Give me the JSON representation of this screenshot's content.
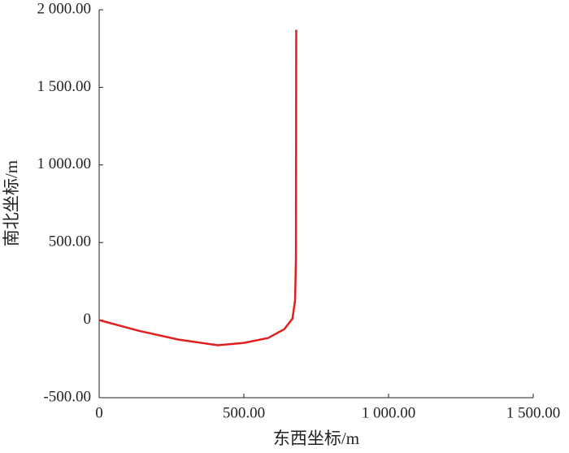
{
  "chart_data": {
    "type": "line",
    "x_label": "东西坐标/m",
    "y_label": "南北坐标/m",
    "xlim": [
      0,
      1500
    ],
    "xticks": [
      0,
      {
        "value": 500,
        "label": "500.00"
      },
      {
        "value": 1000,
        "label": "1 000.00"
      },
      {
        "value": 1500,
        "label": "1 500.00"
      }
    ],
    "ylim": [
      -500,
      2000
    ],
    "yticks": [
      {
        "value": -500,
        "label": "-500.00"
      },
      0,
      {
        "value": 500,
        "label": "500.00"
      },
      {
        "value": 1000,
        "label": "1 000.00"
      },
      {
        "value": 1500,
        "label": "1 500.00"
      },
      {
        "value": 2000,
        "label": "2 000.00"
      }
    ],
    "grid": false,
    "series": [
      {
        "color": "#e02020",
        "x": [
          0,
          135,
          275,
          410,
          500,
          584,
          640,
          668,
          677,
          680,
          681
        ],
        "values": [
          0,
          -68,
          -126,
          -162,
          -147,
          -115,
          -58,
          10,
          126,
          400,
          1871
        ]
      }
    ]
  }
}
